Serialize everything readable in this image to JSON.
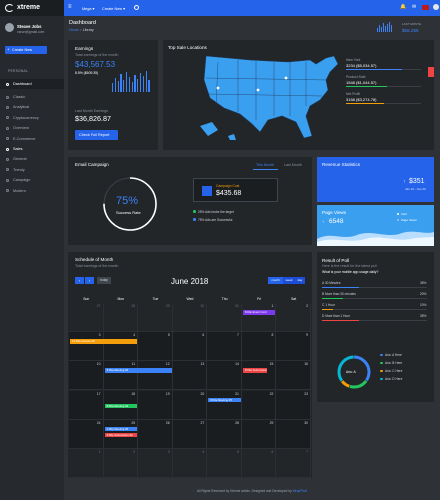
{
  "brand": {
    "name": "xtreme"
  },
  "user": {
    "name": "Steave Jobs",
    "email": "varun@gmail.com"
  },
  "sidebar": {
    "create_new": "Create New",
    "section": "PERSONAL",
    "items": [
      {
        "label": "Dashboard"
      },
      {
        "label": "Classic"
      },
      {
        "label": "Analytical"
      },
      {
        "label": "Cryptocurrency"
      },
      {
        "label": "Overview"
      },
      {
        "label": "E-Commerce"
      },
      {
        "label": "Sales"
      },
      {
        "label": "General"
      },
      {
        "label": "Trendy"
      },
      {
        "label": "Campaign"
      },
      {
        "label": "Modern"
      }
    ]
  },
  "topbar": {
    "mega": "Mega ▾",
    "create_new": "Create New ▾",
    "last_month_label": "LAST MONTH",
    "last_month_value": "$58,256"
  },
  "page": {
    "title": "Dashboard",
    "crumb_home": "Home",
    "crumb_sep": ">",
    "crumb_current": "Library"
  },
  "earnings": {
    "title": "Earnings",
    "subtitle": "Total earnings of the month",
    "value": "$43,567.53",
    "change": "8.5% ($609.35)",
    "change_icon": "arrow-up-icon",
    "last_label": "Last Month Earnings",
    "last_value": "$36,826.87",
    "button": "Check Full Report"
  },
  "sales_map": {
    "title": "Top Sale Locations",
    "stats": [
      {
        "label": "New York",
        "value": "3234 ($5,034.57)",
        "color": "#3b82f6",
        "fill": 0.75
      },
      {
        "label": "Product Sold",
        "value": "1548 ($1,044.57)",
        "color": "#22c55e",
        "fill": 0.55
      },
      {
        "label": "Net Profit",
        "value": "3158 ($3,274.78)",
        "color": "#f59e0b",
        "fill": 0.5
      }
    ]
  },
  "email": {
    "title": "Email Campaign",
    "tab_month": "This Month",
    "tab_last": "Last Month",
    "percent": "75%",
    "percent_label": "Success Rate",
    "cost_label": "Campaign Cost",
    "cost_value": "$435.68",
    "legend1": "25% Ads broke the target",
    "legend2": "75% Ads are Successful"
  },
  "revenue": {
    "title": "Revenue Statistics",
    "value": "$351",
    "date": "Jan 10 - Jan 20"
  },
  "pageviews": {
    "title": "Page Views",
    "value": "6548",
    "legend_visit": "Visit",
    "legend_page": "Page Views"
  },
  "schedule": {
    "title": "Schedule of Month",
    "subtitle": "Total earnings of the month",
    "today": "today",
    "month": "June 2018",
    "view_month": "month",
    "view_week": "week",
    "view_day": "day",
    "days": [
      "Sun",
      "Mon",
      "Tue",
      "Wed",
      "Thu",
      "Fri",
      "Sat"
    ],
    "weeks": [
      [
        "27",
        "28",
        "29",
        "30",
        "31",
        "1",
        "2"
      ],
      [
        "3",
        "4",
        "5",
        "6",
        "7",
        "8",
        "9"
      ],
      [
        "10",
        "11",
        "12",
        "13",
        "14",
        "15",
        "16"
      ],
      [
        "17",
        "18",
        "19",
        "20",
        "21",
        "22",
        "23"
      ],
      [
        "24",
        "25",
        "26",
        "27",
        "28",
        "29",
        "30"
      ],
      [
        "1",
        "2",
        "3",
        "4",
        "5",
        "6",
        "7"
      ]
    ],
    "events": [
      {
        "label": "8:00p Event Conf.",
        "color": "#7c3aed"
      },
      {
        "label": "12:00a Gosses 45",
        "color": "#f59e0b"
      },
      {
        "label": "8:00a Meeting #2",
        "color": "#3b82f6"
      },
      {
        "label": "8:00a Submission #1",
        "color": "#ef4444"
      },
      {
        "label": "8:00a Meeting #4",
        "color": "#22c55e"
      },
      {
        "label": "8:00a Meeting #5",
        "color": "#3b82f6"
      },
      {
        "label": "1:00p Meeting #3",
        "color": "#3b82f6"
      },
      {
        "label": "3:00p Submission #2",
        "color": "#ef4444"
      }
    ]
  },
  "poll": {
    "title": "Result of Poll",
    "subtitle": "Here is the result for the latest poll",
    "question": "What is your mobile app usage daily?",
    "options": [
      {
        "label": "A  30 Minutes",
        "value": "35%",
        "color": "#3b82f6",
        "fill": 0.35
      },
      {
        "label": "B  More than 30 minutes",
        "value": "20%",
        "color": "#22c55e",
        "fill": 0.2
      },
      {
        "label": "C  1 Hour",
        "value": "10%",
        "color": "#f59e0b",
        "fill": 0.1
      },
      {
        "label": "D  More than 1 Hour",
        "value": "35%",
        "color": "#ef4444",
        "fill": 0.35
      }
    ],
    "donut_label": "Ans: A",
    "legend": [
      {
        "label": "Ans: A Here",
        "color": "#3b82f6"
      },
      {
        "label": "Ans: B Here",
        "color": "#22c55e"
      },
      {
        "label": "Ans: C Here",
        "color": "#f59e0b"
      },
      {
        "label": "Ans: D Here",
        "color": "#06b6d4"
      }
    ]
  },
  "footer": {
    "text": "All Rights Reserved by Xtreme admin. Designed and Developed by",
    "link": "WrapPixel"
  }
}
